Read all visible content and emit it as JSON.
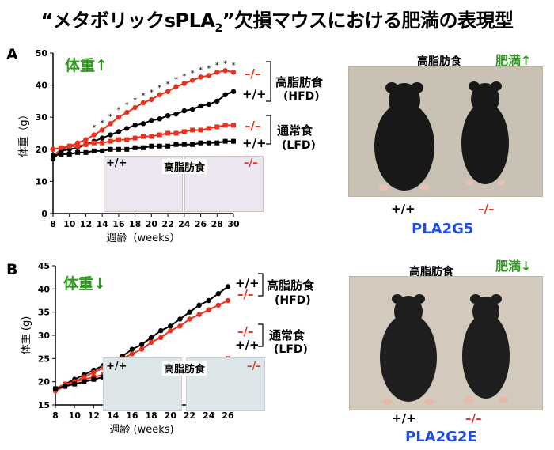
{
  "title": "“メタボリックsPLA",
  "title_sub": "2",
  "title_rest": "”欠損マウスにおける肥満の表現型",
  "panel_a": {
    "letter": "A",
    "weight_label": "体重↑",
    "hfd_label": "高脂肪食",
    "hfd_abbr": "(HFD)",
    "lfd_label": "通常食",
    "lfd_abbr": "(LFD)",
    "ko": "–/–",
    "wt": "+/+",
    "histology_wt": "+/+",
    "histology_title": "高脂肪食",
    "histology_ko": "–/–",
    "photo_title": "高脂肪食",
    "obesity_label": "肥満↑",
    "photo_wt": "+/+",
    "photo_ko": "–/–",
    "gene": "PLA2G5"
  },
  "panel_b": {
    "letter": "B",
    "weight_label": "体重↓",
    "hfd_label": "高脂肪食",
    "hfd_abbr": "(HFD)",
    "lfd_label": "通常食",
    "lfd_abbr": "(LFD)",
    "ko": "–/–",
    "wt": "+/+",
    "histology_wt": "+/+",
    "histology_title": "高脂肪食",
    "histology_ko": "–/–",
    "photo_title": "高脂肪食",
    "obesity_label": "肥満↓",
    "photo_wt": "+/+",
    "photo_ko": "–/–",
    "gene": "PLA2G2E"
  },
  "colors": {
    "ko": "#e8321e",
    "wt": "#000000",
    "green": "#2e9a1e",
    "blue": "#1f4fe0"
  },
  "chart_data": [
    {
      "type": "line",
      "panel": "A",
      "xlabel": "週齢（weeks）",
      "ylabel": "体重（g）",
      "xlim": [
        8,
        30
      ],
      "ylim": [
        0,
        50
      ],
      "xticks": [
        8,
        10,
        12,
        14,
        16,
        18,
        20,
        22,
        24,
        26,
        28,
        30
      ],
      "yticks": [
        0,
        10,
        20,
        30,
        40,
        50
      ],
      "x": [
        8,
        9,
        10,
        11,
        12,
        13,
        14,
        15,
        16,
        17,
        18,
        19,
        20,
        21,
        22,
        23,
        24,
        25,
        26,
        27,
        28,
        29,
        30
      ],
      "series": [
        {
          "name": "–/–",
          "diet": "高脂肪食 (HFD)",
          "genotype": "–/–",
          "color": "#e8321e",
          "marker": "circle",
          "values": [
            18,
            20,
            21,
            22,
            23,
            24.5,
            26,
            28,
            30,
            31.5,
            33,
            34.5,
            35.5,
            37,
            38,
            39.5,
            40.5,
            41.5,
            42.5,
            43,
            44,
            44.5,
            44
          ]
        },
        {
          "name": "+/+",
          "diet": "高脂肪食 (HFD)",
          "genotype": "+/+",
          "color": "#000000",
          "marker": "circle",
          "values": [
            17,
            19.5,
            20,
            20.5,
            21.5,
            22.5,
            23.5,
            24.5,
            25.5,
            26.5,
            27.5,
            28,
            29,
            29.5,
            30.5,
            31,
            32,
            32.5,
            33.5,
            34,
            35,
            37,
            38
          ]
        },
        {
          "name": "–/–",
          "diet": "通常食 (LFD)",
          "genotype": "–/–",
          "color": "#e8321e",
          "marker": "square",
          "values": [
            20,
            20.5,
            21,
            21,
            21.5,
            22,
            22,
            22.5,
            23,
            23,
            23.5,
            24,
            24,
            24.5,
            25,
            25,
            25.5,
            26,
            26,
            26.5,
            27,
            27.5,
            27.5
          ]
        },
        {
          "name": "+/+",
          "diet": "通常食 (LFD)",
          "genotype": "+/+",
          "color": "#000000",
          "marker": "square",
          "values": [
            18,
            18.5,
            18.5,
            19,
            19,
            19.5,
            19.5,
            20,
            20,
            20,
            20.5,
            20.5,
            21,
            21,
            21,
            21.5,
            21.5,
            21.5,
            22,
            22,
            22,
            22.5,
            22.5
          ]
        }
      ],
      "significance_marks": "*"
    },
    {
      "type": "line",
      "panel": "B",
      "xlabel": "週齢 (weeks)",
      "ylabel": "体重 (g)",
      "xlim": [
        8,
        26
      ],
      "ylim": [
        15,
        45
      ],
      "xticks": [
        8,
        10,
        12,
        14,
        16,
        18,
        20,
        22,
        24,
        26
      ],
      "yticks": [
        15,
        20,
        25,
        30,
        35,
        40,
        45
      ],
      "x": [
        8,
        9,
        10,
        11,
        12,
        13,
        14,
        15,
        16,
        17,
        18,
        19,
        20,
        21,
        22,
        23,
        24,
        25,
        26
      ],
      "series": [
        {
          "name": "+/+",
          "diet": "高脂肪食 (HFD)",
          "genotype": "+/+",
          "color": "#000000",
          "marker": "circle",
          "values": [
            18.5,
            19.5,
            20.5,
            21.5,
            22.5,
            23.5,
            24.5,
            25.5,
            27,
            28,
            29.5,
            31,
            32,
            33.5,
            35,
            36.5,
            37.5,
            39,
            40.5
          ]
        },
        {
          "name": "–/–",
          "diet": "高脂肪食 (HFD)",
          "genotype": "–/–",
          "color": "#e8321e",
          "marker": "circle",
          "values": [
            18,
            19,
            20,
            21,
            22,
            23,
            24,
            25,
            26,
            27,
            28.5,
            29.5,
            31,
            32,
            33.5,
            34.5,
            35.5,
            36.5,
            37.5
          ]
        },
        {
          "name": "–/–",
          "diet": "通常食 (LFD)",
          "genotype": "–/–",
          "color": "#e8321e",
          "marker": "square",
          "values": [
            18.5,
            19.5,
            20,
            20.5,
            21,
            21.5,
            21.5,
            22,
            22,
            22.5,
            22.5,
            23,
            23,
            23.5,
            23.5,
            24,
            24,
            24.5,
            25
          ]
        },
        {
          "name": "+/+",
          "diet": "通常食 (LFD)",
          "genotype": "+/+",
          "color": "#000000",
          "marker": "square",
          "values": [
            18.5,
            19,
            19.5,
            20,
            20.5,
            21,
            21,
            21.5,
            21.5,
            22,
            22,
            22,
            22.5,
            22.5,
            23,
            23,
            23.5,
            23.5,
            24
          ]
        }
      ]
    }
  ]
}
